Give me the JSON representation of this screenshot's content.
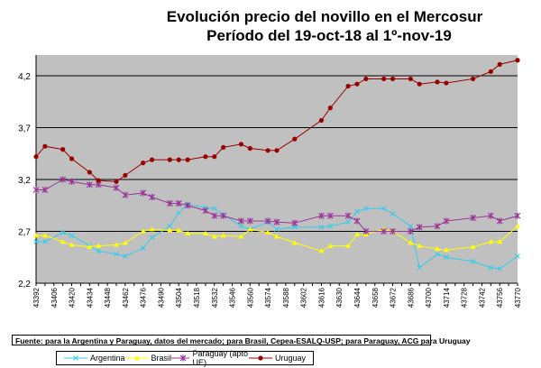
{
  "chart_data": {
    "type": "line",
    "title": "Evolución precio del novillo en el Mercosur",
    "subtitle": "Período del 19-oct-18 al 1º-nov-19",
    "xlabel": "",
    "ylabel": "",
    "ylim": [
      2.2,
      4.4
    ],
    "yticks": [
      "2,2",
      "2,7",
      "3,2",
      "3,7",
      "4,2"
    ],
    "xlim": [
      43392,
      43770
    ],
    "xticks": [
      43392,
      43406,
      43420,
      43434,
      43448,
      43462,
      43476,
      43490,
      43504,
      43518,
      43532,
      43546,
      43560,
      43574,
      43588,
      43602,
      43616,
      43630,
      43644,
      43658,
      43672,
      43686,
      43700,
      43714,
      43728,
      43742,
      43756,
      43770
    ],
    "grid": "horizontal",
    "legend_position": "bottom",
    "x": [
      43392,
      43399,
      43413,
      43420,
      43434,
      43441,
      43455,
      43462,
      43476,
      43483,
      43497,
      43504,
      43511,
      43525,
      43532,
      43539,
      43553,
      43560,
      43574,
      43581,
      43595,
      43616,
      43623,
      43637,
      43644,
      43651,
      43665,
      43672,
      43686,
      43693,
      43707,
      43714,
      43735,
      43749,
      43756,
      43770
    ],
    "series": [
      {
        "name": "Argentina",
        "color": "#33CCEE",
        "marker": "x",
        "values": [
          2.6,
          2.6,
          2.69,
          2.66,
          2.56,
          2.51,
          2.48,
          2.46,
          2.54,
          2.64,
          2.75,
          2.88,
          2.96,
          2.93,
          2.92,
          2.86,
          2.75,
          2.72,
          2.79,
          2.72,
          2.74,
          2.74,
          2.75,
          2.79,
          2.89,
          2.92,
          2.92,
          2.87,
          2.75,
          2.35,
          2.48,
          2.45,
          2.41,
          2.35,
          2.34,
          2.46
        ]
      },
      {
        "name": "Brasil",
        "color": "#FFFF00",
        "marker": "triangle",
        "values": [
          2.66,
          2.66,
          2.6,
          2.57,
          2.55,
          2.56,
          2.57,
          2.59,
          2.7,
          2.72,
          2.71,
          2.71,
          2.68,
          2.68,
          2.65,
          2.66,
          2.65,
          2.72,
          2.69,
          2.65,
          2.59,
          2.51,
          2.56,
          2.56,
          2.67,
          2.67,
          2.72,
          2.7,
          2.59,
          2.56,
          2.53,
          2.52,
          2.55,
          2.6,
          2.6,
          2.75
        ]
      },
      {
        "name": "Paraguay (apto UE)",
        "color": "#993399",
        "marker": "star",
        "values": [
          3.1,
          3.1,
          3.2,
          3.18,
          3.15,
          3.15,
          3.12,
          3.05,
          3.07,
          3.03,
          2.97,
          2.97,
          2.95,
          2.9,
          2.85,
          2.85,
          2.8,
          2.8,
          2.8,
          2.79,
          2.78,
          2.85,
          2.85,
          2.85,
          2.8,
          2.7,
          2.7,
          2.7,
          2.7,
          2.74,
          2.75,
          2.8,
          2.83,
          2.85,
          2.8,
          2.85
        ]
      },
      {
        "name": "Uruguay",
        "color": "#990000",
        "marker": "circle",
        "values": [
          3.42,
          3.52,
          3.49,
          3.4,
          3.27,
          3.19,
          3.18,
          3.24,
          3.36,
          3.39,
          3.39,
          3.39,
          3.39,
          3.42,
          3.42,
          3.51,
          3.54,
          3.5,
          3.48,
          3.48,
          3.59,
          3.77,
          3.89,
          4.1,
          4.12,
          4.17,
          4.17,
          4.17,
          4.17,
          4.12,
          4.14,
          4.13,
          4.17,
          4.24,
          4.31,
          4.35
        ]
      }
    ],
    "footnote": "Fuente: para la Argentina y Paraguay, datos del mercado; para Brasil, Cepea-ESALQ-USP; para Paraguay, ACG para Uruguay"
  }
}
